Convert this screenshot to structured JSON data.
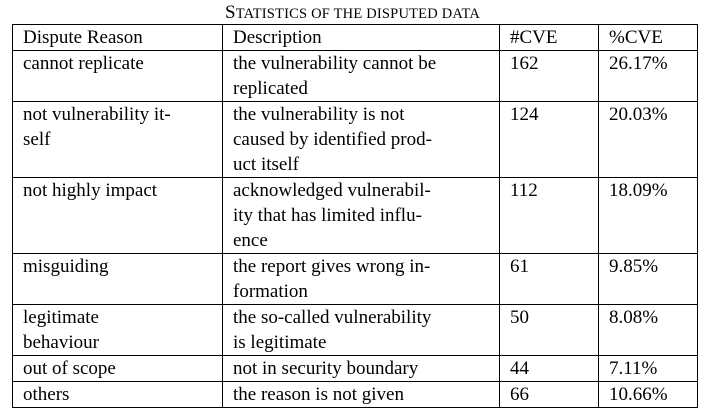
{
  "caption": {
    "first_letter": "S",
    "rest": "TATISTICS OF THE DISPUTED DATA"
  },
  "table": {
    "headers": [
      "Dispute Reason",
      "Description",
      "#CVE",
      "%CVE"
    ],
    "rows": [
      {
        "reason": [
          "cannot replicate"
        ],
        "description": [
          "the vulnerability cannot be",
          "replicated"
        ],
        "count": "162",
        "percent": "26.17%"
      },
      {
        "reason": [
          "not vulnerability it-",
          "self"
        ],
        "description": [
          "the vulnerability is not",
          "caused by identified prod-",
          "uct itself"
        ],
        "count": "124",
        "percent": "20.03%"
      },
      {
        "reason": [
          "not highly impact"
        ],
        "description": [
          "acknowledged vulnerabil-",
          "ity that has limited influ-",
          "ence"
        ],
        "count": "112",
        "percent": "18.09%"
      },
      {
        "reason": [
          "misguiding"
        ],
        "description": [
          "the report gives wrong in-",
          "formation"
        ],
        "count": "61",
        "percent": "9.85%"
      },
      {
        "reason": [
          "legitimate",
          "behaviour"
        ],
        "description": [
          "the so-called vulnerability",
          "is legitimate"
        ],
        "count": "50",
        "percent": "8.08%"
      },
      {
        "reason": [
          "out of scope"
        ],
        "description": [
          "not in security boundary"
        ],
        "count": "44",
        "percent": "7.11%"
      },
      {
        "reason": [
          "others"
        ],
        "description": [
          "the reason is not given"
        ],
        "count": "66",
        "percent": "10.66%"
      }
    ]
  }
}
